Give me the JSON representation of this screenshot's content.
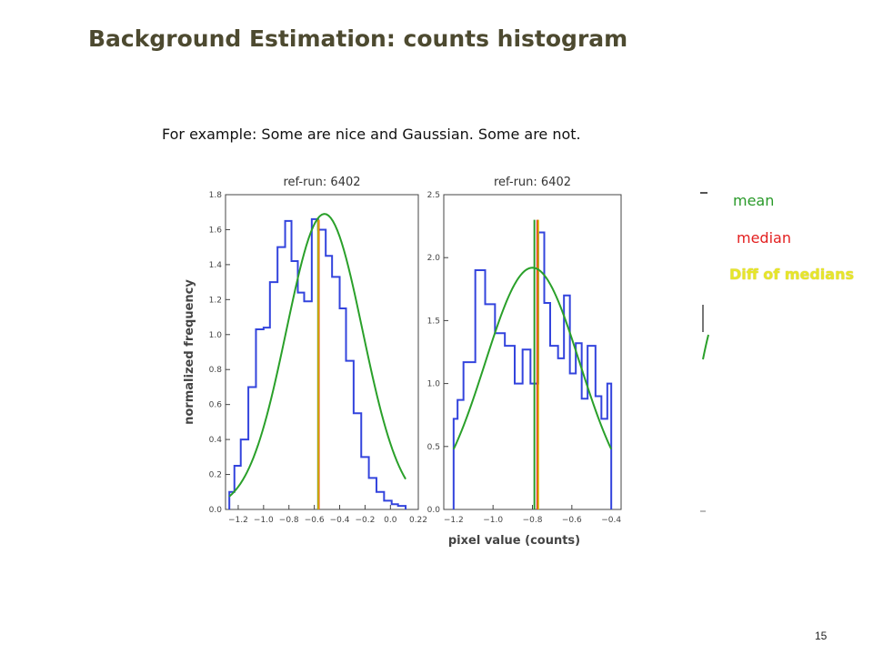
{
  "slide": {
    "title": "Background Estimation: counts histogram",
    "subtitle": "For example: Some are nice and Gaussian. Some are not.",
    "page_number": "15"
  },
  "legend": {
    "items": [
      {
        "label": "mean",
        "color": "#2a9a2a"
      },
      {
        "label": "median",
        "color": "#e32020"
      },
      {
        "label": "Diff of medians",
        "color": "#e6e62a"
      }
    ]
  },
  "colors": {
    "histogram": "#3344dd",
    "gaussian": "#2aa02a",
    "mean": "#2a9a2a",
    "median": "#e32020",
    "diff": "#d8b000"
  },
  "chart_data": [
    {
      "type": "bar",
      "title": "ref-run: 6402",
      "ylabel": "normalized frequency",
      "xlabel": "",
      "xlim": [
        -1.3,
        0.22
      ],
      "ylim": [
        0,
        1.8
      ],
      "xticks": [
        -1.2,
        -1.0,
        -0.8,
        -0.6,
        -0.4,
        -0.2,
        0.0,
        0.22
      ],
      "xtick_labels": [
        "−1.2",
        "−1.0",
        "−0.8",
        "−0.6",
        "−0.4",
        "−0.2",
        "0.0",
        "0.22"
      ],
      "yticks": [
        0.0,
        0.2,
        0.4,
        0.6,
        0.8,
        1.0,
        1.2,
        1.4,
        1.6,
        1.8
      ],
      "histogram": {
        "edges": [
          -1.27,
          -1.23,
          -1.18,
          -1.12,
          -1.06,
          -1.0,
          -0.95,
          -0.89,
          -0.83,
          -0.78,
          -0.73,
          -0.68,
          -0.62,
          -0.57,
          -0.51,
          -0.46,
          -0.4,
          -0.35,
          -0.29,
          -0.23,
          -0.17,
          -0.11,
          -0.05,
          0.01,
          0.06,
          0.12
        ],
        "values": [
          0.1,
          0.25,
          0.4,
          0.7,
          1.03,
          1.04,
          1.3,
          1.5,
          1.65,
          1.42,
          1.24,
          1.19,
          1.66,
          1.6,
          1.45,
          1.33,
          1.15,
          0.85,
          0.55,
          0.3,
          0.18,
          0.1,
          0.05,
          0.03,
          0.02
        ]
      },
      "gaussian": {
        "mu": -0.52,
        "sigma": 0.3,
        "amplitude": 1.69
      },
      "mean_x": -0.57,
      "median_x": -0.565
    },
    {
      "type": "bar",
      "title": "ref-run: 6402",
      "ylabel": "",
      "xlabel": "pixel value (counts)",
      "xlim": [
        -1.25,
        -0.35
      ],
      "ylim": [
        0,
        2.5
      ],
      "xticks": [
        -1.2,
        -1.0,
        -0.8,
        -0.6,
        -0.4
      ],
      "xtick_labels": [
        "−1.2",
        "−1.0",
        "−0.8",
        "−0.6",
        "−0.4"
      ],
      "yticks": [
        0.0,
        0.5,
        1.0,
        1.5,
        2.0,
        2.5
      ],
      "histogram": {
        "edges": [
          -1.2,
          -1.18,
          -1.15,
          -1.09,
          -1.04,
          -0.99,
          -0.94,
          -0.89,
          -0.85,
          -0.81,
          -0.77,
          -0.74,
          -0.71,
          -0.67,
          -0.64,
          -0.61,
          -0.58,
          -0.55,
          -0.52,
          -0.48,
          -0.45,
          -0.42,
          -0.4
        ],
        "values": [
          0.72,
          0.87,
          1.17,
          1.9,
          1.63,
          1.4,
          1.3,
          1.0,
          1.27,
          1.0,
          2.2,
          1.64,
          1.3,
          1.2,
          1.7,
          1.08,
          1.32,
          0.88,
          1.3,
          0.9,
          0.72,
          1.0
        ]
      },
      "gaussian": {
        "mu": -0.8,
        "sigma": 0.24,
        "amplitude": 1.92
      },
      "mean_x": -0.79,
      "median_x": -0.775
    }
  ]
}
